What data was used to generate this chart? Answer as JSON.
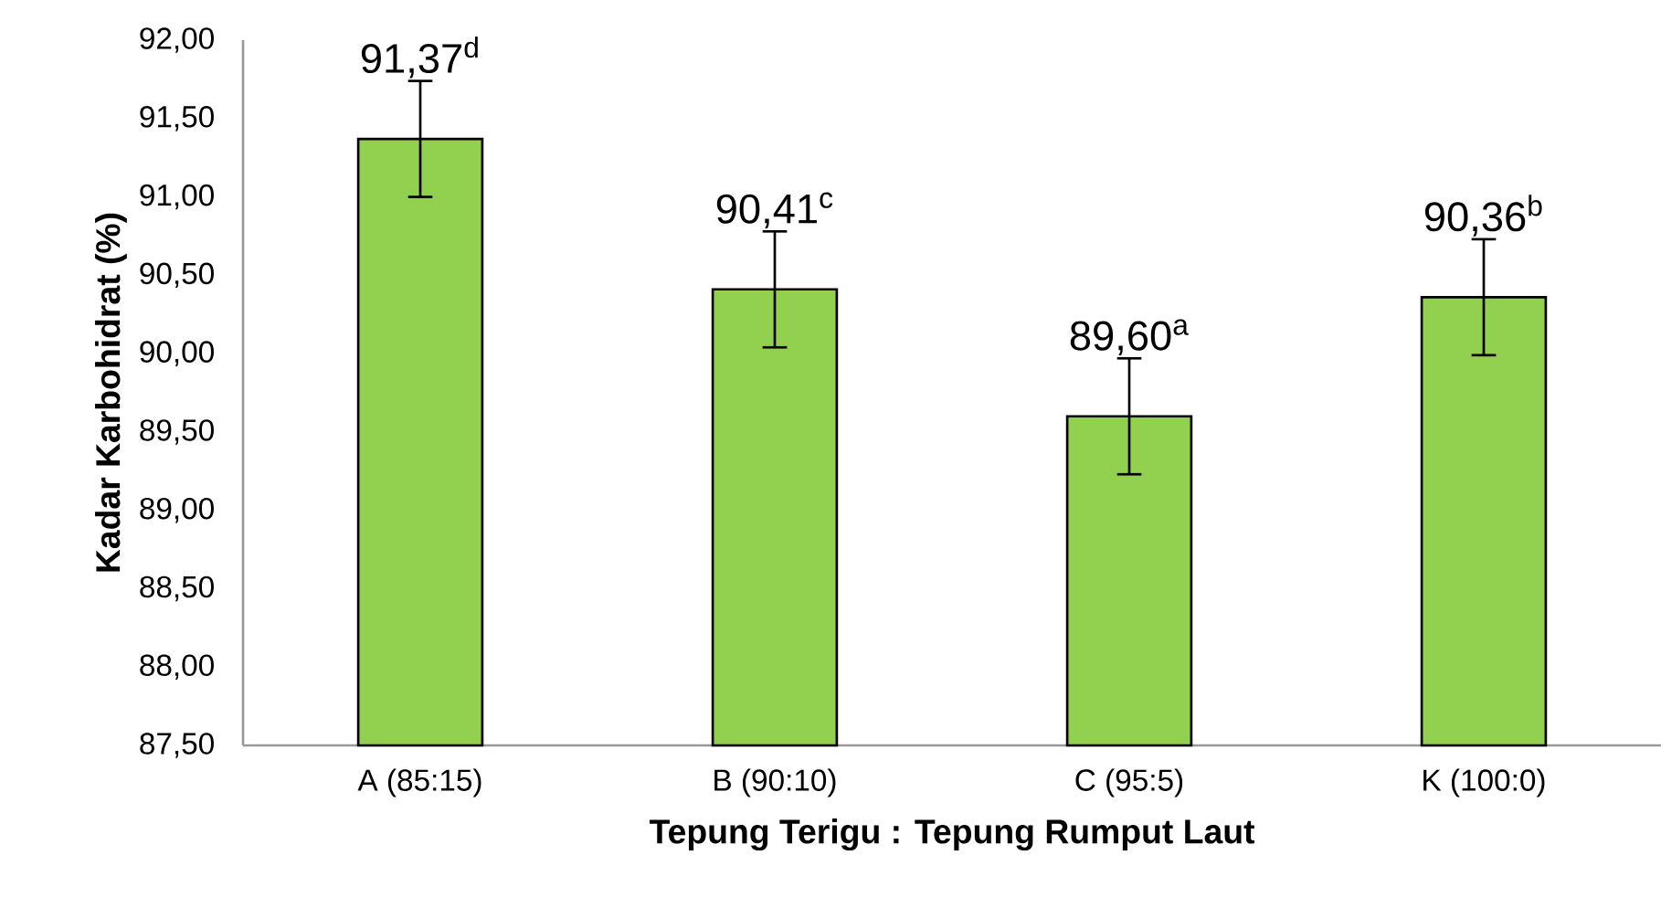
{
  "chart_data": {
    "type": "bar",
    "xlabel": "Tepung Terigu : Tepung Rumput Laut",
    "ylabel": "Kadar Karbohidrat (%)",
    "categories": [
      "A (85:15)",
      "B (90:10)",
      "C (95:5)",
      "K (100:0)"
    ],
    "values": [
      91.37,
      90.41,
      89.6,
      90.36
    ],
    "errors": [
      0.37,
      0.37,
      0.37,
      0.37
    ],
    "value_labels": [
      "91,37$^{d}$",
      "90,41$^{c}$",
      "89,60$^{a}$",
      "90,36$^{b}$"
    ],
    "color": "#92d050",
    "ylim": [
      87.5,
      92.0
    ],
    "yticks": [
      {
        "value": 87.5,
        "label": "87,50"
      },
      {
        "value": 88.0,
        "label": "88,00"
      },
      {
        "value": 88.5,
        "label": "88,50"
      },
      {
        "value": 89.0,
        "label": "89,00"
      },
      {
        "value": 89.5,
        "label": "89,50"
      },
      {
        "value": 90.0,
        "label": "90,00"
      },
      {
        "value": 90.5,
        "label": "90,50"
      },
      {
        "value": 91.0,
        "label": "91,00"
      },
      {
        "value": 91.5,
        "label": "91,50"
      },
      {
        "value": 92.0,
        "label": "92,00"
      }
    ]
  }
}
